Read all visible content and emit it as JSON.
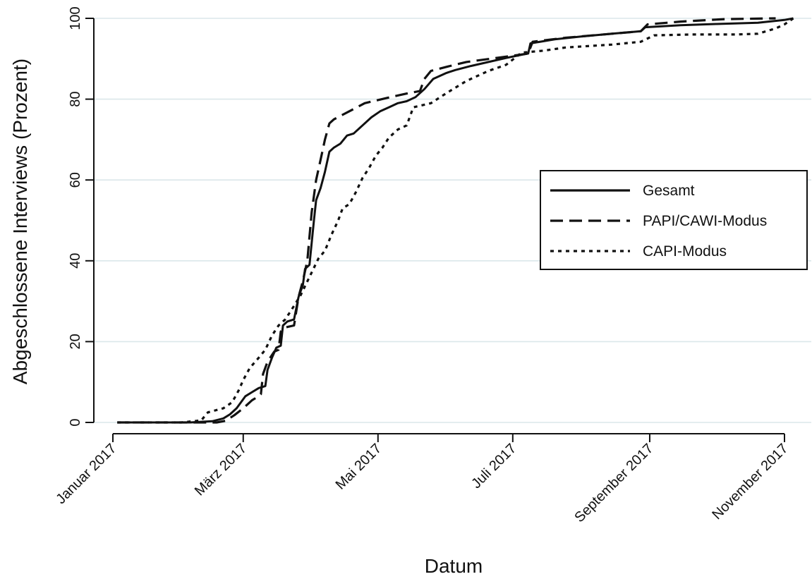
{
  "chart_data": {
    "type": "line",
    "title": "",
    "xlabel": "Datum",
    "ylabel": "Abgeschlossene Interviews (Prozent)",
    "xlim": [
      "2017-01-01",
      "2017-11-07"
    ],
    "ylim": [
      0,
      100
    ],
    "grid": true,
    "legend_position": "right",
    "x_ticks": [
      "2017-01-01",
      "2017-03-01",
      "2017-05-01",
      "2017-07-01",
      "2017-09-01",
      "2017-11-01"
    ],
    "x_tick_labels": [
      "Januar 2017",
      "März 2017",
      "Mai 2017",
      "Juli 2017",
      "September 2017",
      "November 2017"
    ],
    "y_ticks": [
      0,
      20,
      40,
      60,
      80,
      100
    ],
    "y_tick_labels": [
      "0",
      "20",
      "40",
      "60",
      "80",
      "100"
    ],
    "series": [
      {
        "name": "Gesamt",
        "style": "solid",
        "color": "#111111",
        "points": [
          [
            "2017-01-03",
            0
          ],
          [
            "2017-02-05",
            0
          ],
          [
            "2017-02-15",
            0.3
          ],
          [
            "2017-02-20",
            1
          ],
          [
            "2017-02-23",
            2
          ],
          [
            "2017-02-26",
            3.5
          ],
          [
            "2017-02-28",
            5
          ],
          [
            "2017-03-02",
            6.5
          ],
          [
            "2017-03-05",
            7.5
          ],
          [
            "2017-03-08",
            8.5
          ],
          [
            "2017-03-11",
            9
          ],
          [
            "2017-03-12",
            13
          ],
          [
            "2017-03-14",
            16
          ],
          [
            "2017-03-16",
            18.5
          ],
          [
            "2017-03-18",
            19
          ],
          [
            "2017-03-19",
            24
          ],
          [
            "2017-03-21",
            25
          ],
          [
            "2017-03-24",
            25.5
          ],
          [
            "2017-03-26",
            31
          ],
          [
            "2017-03-28",
            34
          ],
          [
            "2017-03-29",
            38
          ],
          [
            "2017-03-31",
            39
          ],
          [
            "2017-04-02",
            50
          ],
          [
            "2017-04-03",
            55
          ],
          [
            "2017-04-05",
            58
          ],
          [
            "2017-04-07",
            62
          ],
          [
            "2017-04-09",
            67
          ],
          [
            "2017-04-11",
            68
          ],
          [
            "2017-04-14",
            69
          ],
          [
            "2017-04-17",
            71
          ],
          [
            "2017-04-20",
            71.5
          ],
          [
            "2017-04-24",
            73.5
          ],
          [
            "2017-04-28",
            75.5
          ],
          [
            "2017-05-02",
            77
          ],
          [
            "2017-05-06",
            78
          ],
          [
            "2017-05-10",
            79
          ],
          [
            "2017-05-14",
            79.5
          ],
          [
            "2017-05-18",
            80.5
          ],
          [
            "2017-05-22",
            82.5
          ],
          [
            "2017-05-26",
            85
          ],
          [
            "2017-06-01",
            86.5
          ],
          [
            "2017-06-05",
            87.2
          ],
          [
            "2017-06-12",
            88.2
          ],
          [
            "2017-06-20",
            89.2
          ],
          [
            "2017-06-28",
            90.2
          ],
          [
            "2017-07-05",
            91
          ],
          [
            "2017-07-08",
            91.3
          ],
          [
            "2017-07-09",
            93.8
          ],
          [
            "2017-07-20",
            94.8
          ],
          [
            "2017-08-01",
            95.5
          ],
          [
            "2017-08-15",
            96.2
          ],
          [
            "2017-08-28",
            96.8
          ],
          [
            "2017-08-30",
            97.8
          ],
          [
            "2017-09-15",
            98.3
          ],
          [
            "2017-10-01",
            98.6
          ],
          [
            "2017-10-20",
            98.9
          ],
          [
            "2017-11-01",
            99.6
          ],
          [
            "2017-11-05",
            100
          ]
        ]
      },
      {
        "name": "PAPI/CAWI-Modus",
        "style": "dashed",
        "color": "#111111",
        "points": [
          [
            "2017-01-03",
            0
          ],
          [
            "2017-02-17",
            0
          ],
          [
            "2017-02-21",
            0.4
          ],
          [
            "2017-02-25",
            1.8
          ],
          [
            "2017-03-01",
            3.5
          ],
          [
            "2017-03-05",
            5.5
          ],
          [
            "2017-03-08",
            6.5
          ],
          [
            "2017-03-09",
            7
          ],
          [
            "2017-03-10",
            12
          ],
          [
            "2017-03-12",
            15
          ],
          [
            "2017-03-15",
            17.5
          ],
          [
            "2017-03-17",
            18
          ],
          [
            "2017-03-18",
            22.5
          ],
          [
            "2017-03-20",
            23.5
          ],
          [
            "2017-03-24",
            24
          ],
          [
            "2017-03-26",
            31
          ],
          [
            "2017-03-28",
            35
          ],
          [
            "2017-03-30",
            40
          ],
          [
            "2017-04-01",
            52
          ],
          [
            "2017-04-03",
            60
          ],
          [
            "2017-04-05",
            65
          ],
          [
            "2017-04-07",
            70
          ],
          [
            "2017-04-09",
            74
          ],
          [
            "2017-04-11",
            75
          ],
          [
            "2017-04-18",
            77
          ],
          [
            "2017-04-25",
            79
          ],
          [
            "2017-05-05",
            80.3
          ],
          [
            "2017-05-15",
            81.5
          ],
          [
            "2017-05-20",
            82
          ],
          [
            "2017-05-22",
            85
          ],
          [
            "2017-05-25",
            87
          ],
          [
            "2017-06-01",
            88
          ],
          [
            "2017-06-10",
            89.2
          ],
          [
            "2017-06-25",
            90.3
          ],
          [
            "2017-07-08",
            91.3
          ],
          [
            "2017-07-10",
            94.2
          ],
          [
            "2017-07-25",
            95.2
          ],
          [
            "2017-08-15",
            96.2
          ],
          [
            "2017-08-28",
            96.8
          ],
          [
            "2017-08-31",
            98.5
          ],
          [
            "2017-09-15",
            99.2
          ],
          [
            "2017-10-05",
            99.8
          ],
          [
            "2017-10-28",
            100
          ]
        ]
      },
      {
        "name": "CAPI-Modus",
        "style": "dotted",
        "color": "#111111",
        "points": [
          [
            "2017-01-03",
            0
          ],
          [
            "2017-02-01",
            0
          ],
          [
            "2017-02-10",
            0.5
          ],
          [
            "2017-02-13",
            2.5
          ],
          [
            "2017-02-20",
            3.5
          ],
          [
            "2017-02-24",
            5
          ],
          [
            "2017-02-27",
            8
          ],
          [
            "2017-03-01",
            10.5
          ],
          [
            "2017-03-04",
            13.5
          ],
          [
            "2017-03-08",
            16
          ],
          [
            "2017-03-11",
            18
          ],
          [
            "2017-03-14",
            21.5
          ],
          [
            "2017-03-17",
            24
          ],
          [
            "2017-03-20",
            25.5
          ],
          [
            "2017-03-23",
            28
          ],
          [
            "2017-03-27",
            31.5
          ],
          [
            "2017-03-31",
            36
          ],
          [
            "2017-04-04",
            40.5
          ],
          [
            "2017-04-07",
            42.5
          ],
          [
            "2017-04-10",
            46.5
          ],
          [
            "2017-04-13",
            50
          ],
          [
            "2017-04-15",
            53
          ],
          [
            "2017-04-18",
            54
          ],
          [
            "2017-04-21",
            57
          ],
          [
            "2017-04-24",
            60.5
          ],
          [
            "2017-04-27",
            63
          ],
          [
            "2017-04-30",
            66
          ],
          [
            "2017-05-03",
            68
          ],
          [
            "2017-05-06",
            70.5
          ],
          [
            "2017-05-10",
            72.5
          ],
          [
            "2017-05-14",
            73.5
          ],
          [
            "2017-05-17",
            78
          ],
          [
            "2017-05-25",
            79
          ],
          [
            "2017-06-01",
            81.5
          ],
          [
            "2017-06-10",
            84.5
          ],
          [
            "2017-06-20",
            87
          ],
          [
            "2017-06-28",
            88.5
          ],
          [
            "2017-07-05",
            91.5
          ],
          [
            "2017-07-15",
            92
          ],
          [
            "2017-07-25",
            92.8
          ],
          [
            "2017-08-15",
            93.5
          ],
          [
            "2017-08-28",
            94.2
          ],
          [
            "2017-09-03",
            95.8
          ],
          [
            "2017-09-20",
            96
          ],
          [
            "2017-10-10",
            96
          ],
          [
            "2017-10-20",
            96.2
          ],
          [
            "2017-10-28",
            97.5
          ],
          [
            "2017-11-01",
            98.5
          ],
          [
            "2017-11-05",
            100
          ]
        ]
      }
    ]
  }
}
